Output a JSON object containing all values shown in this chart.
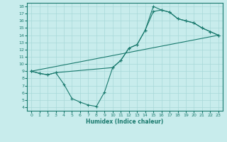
{
  "xlabel": "Humidex (Indice chaleur)",
  "background_color": "#c8ecec",
  "line_color": "#1a7a6e",
  "grid_color": "#a8d8d8",
  "xlim": [
    -0.5,
    23.5
  ],
  "ylim": [
    3.5,
    18.5
  ],
  "xticks": [
    0,
    1,
    2,
    3,
    4,
    5,
    6,
    7,
    8,
    9,
    10,
    11,
    12,
    13,
    14,
    15,
    16,
    17,
    18,
    19,
    20,
    21,
    22,
    23
  ],
  "yticks": [
    4,
    5,
    6,
    7,
    8,
    9,
    10,
    11,
    12,
    13,
    14,
    15,
    16,
    17,
    18
  ],
  "line1_x": [
    0,
    1,
    2,
    3,
    4,
    5,
    6,
    7,
    8,
    9,
    10,
    11,
    12,
    13,
    14,
    15,
    16,
    17,
    18,
    19,
    20,
    21,
    22,
    23
  ],
  "line1_y": [
    9.0,
    8.7,
    8.5,
    8.8,
    7.2,
    5.2,
    4.7,
    4.3,
    4.1,
    6.1,
    9.5,
    10.5,
    12.2,
    12.7,
    14.7,
    17.3,
    17.5,
    17.2,
    16.3,
    16.0,
    15.7,
    15.0,
    14.5,
    14.0
  ],
  "line2_x": [
    0,
    1,
    2,
    3,
    10,
    11,
    12,
    13,
    14,
    15,
    16,
    17,
    18,
    19,
    20,
    21,
    22,
    23
  ],
  "line2_y": [
    9.0,
    8.7,
    8.5,
    8.8,
    9.5,
    10.5,
    12.2,
    12.7,
    14.7,
    18.0,
    17.5,
    17.2,
    16.3,
    16.0,
    15.7,
    15.0,
    14.5,
    14.0
  ],
  "line3_x": [
    0,
    23
  ],
  "line3_y": [
    9.0,
    14.0
  ]
}
